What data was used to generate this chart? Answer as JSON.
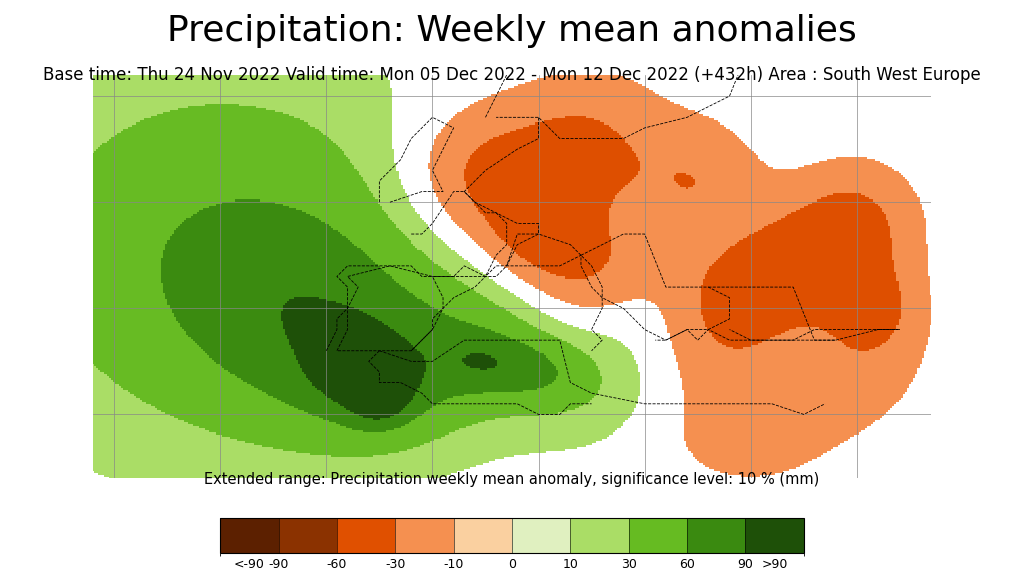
{
  "title": "Precipitation: Weekly mean anomalies",
  "subtitle": "Base time: Thu 24 Nov 2022 Valid time: Mon 05 Dec 2022 - Mon 12 Dec 2022 (+432h) Area : South West Europe",
  "colorbar_label": "Extended range: Precipitation weekly mean anomaly, significance level: 10 % (mm)",
  "colorbar_ticks": [
    "<-90",
    "-90",
    "-60",
    "-30",
    "-10",
    "0",
    "10",
    "30",
    "60",
    "90",
    ">90"
  ],
  "colorbar_colors": [
    "#5C2000",
    "#8B3200",
    "#E05000",
    "#F59050",
    "#FAD0A0",
    "#E0F0C0",
    "#AADD66",
    "#66BB22",
    "#3A8A10",
    "#1E5008"
  ],
  "background_color": "#FFFFFF",
  "title_fontsize": 26,
  "subtitle_fontsize": 12,
  "map_background": "#FFFFFF",
  "figure_width": 10.24,
  "figure_height": 5.76,
  "lon_min": -32,
  "lon_max": 47,
  "lat_min": 24,
  "lat_max": 62,
  "gridline_color": "#888888",
  "gridline_lw": 0.5,
  "border_color": "#000000",
  "border_lw": 0.6
}
